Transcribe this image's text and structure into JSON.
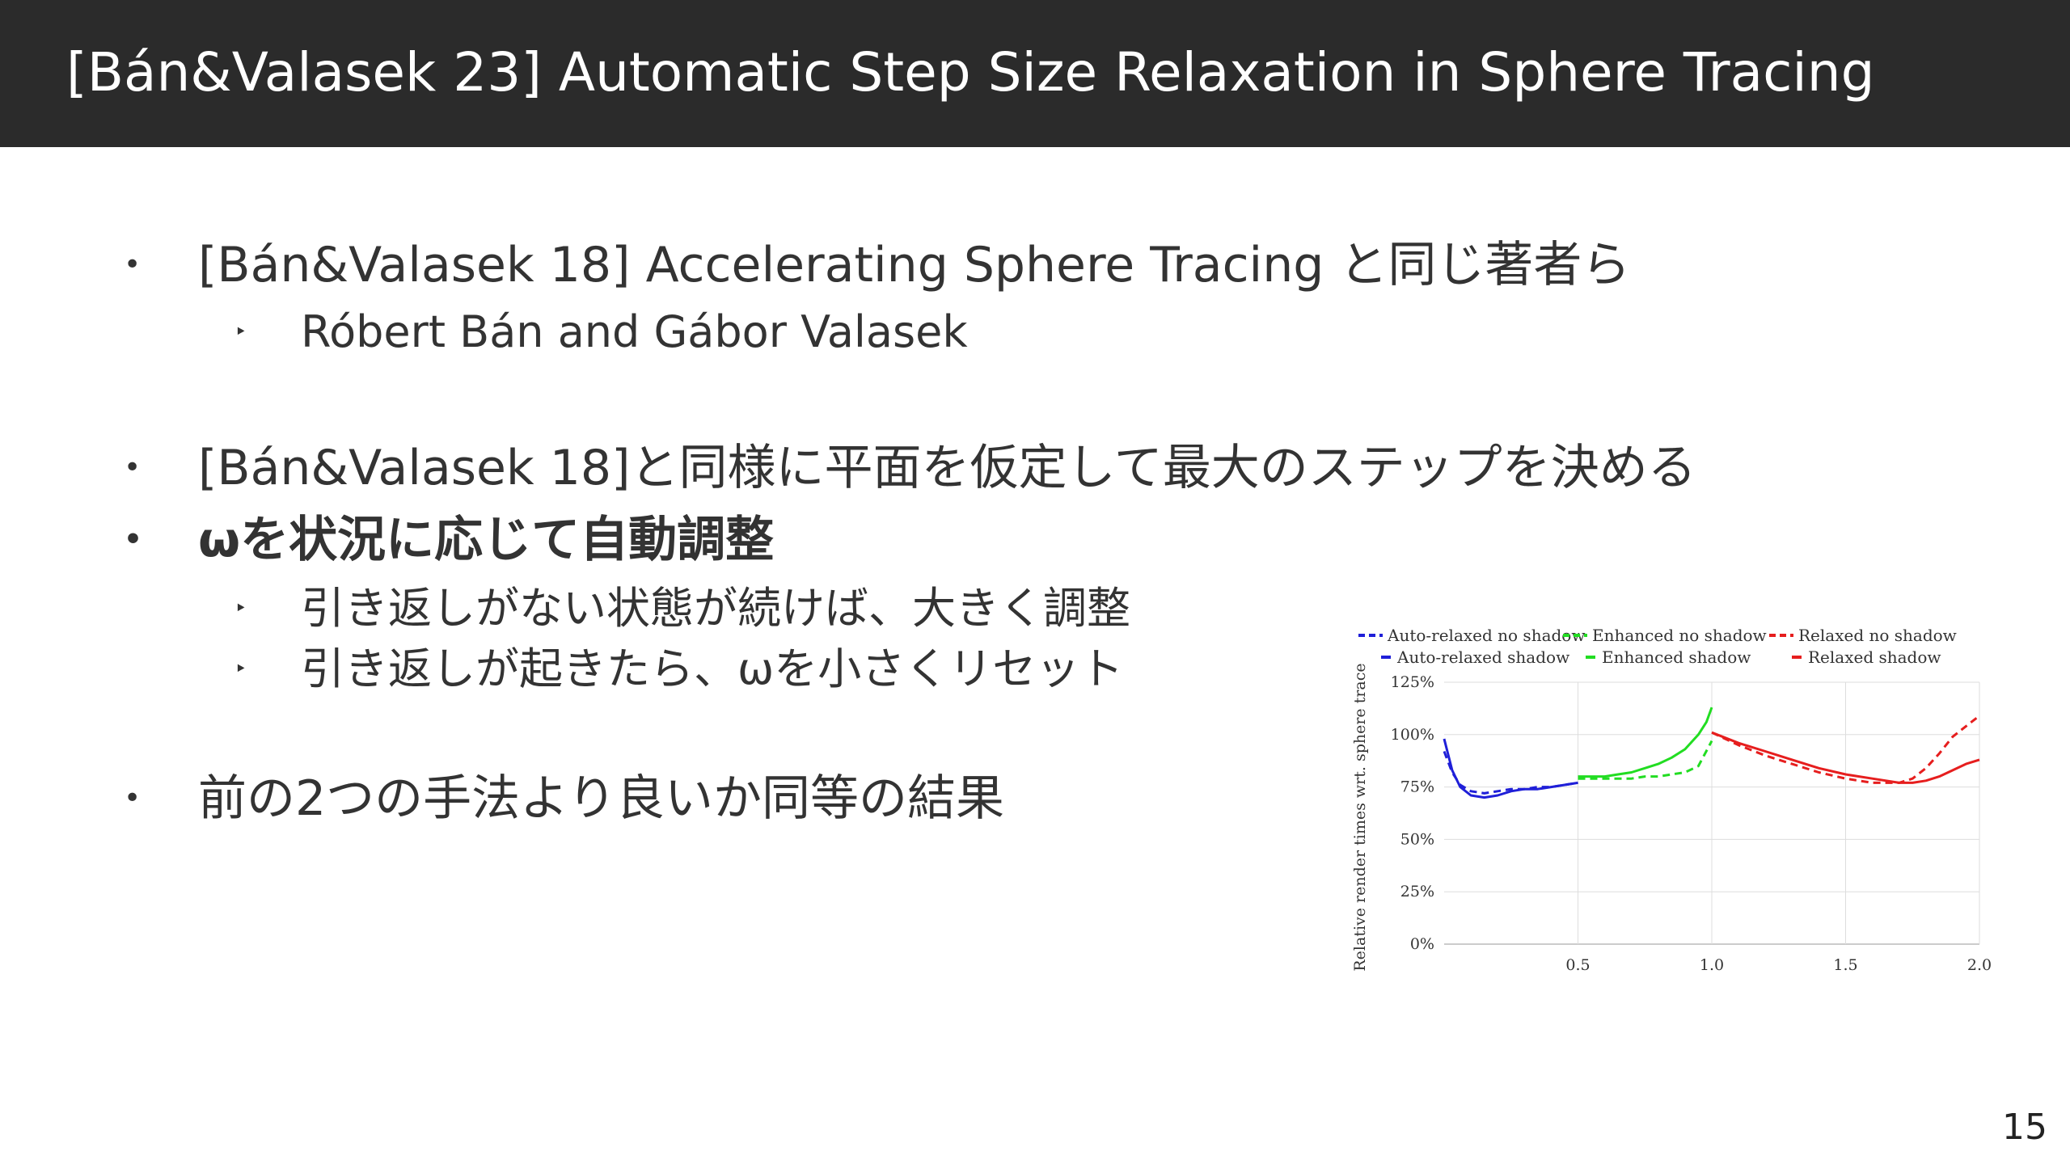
{
  "slide": {
    "title": "[Bán&Valasek 23] Automatic Step Size Relaxation in Sphere Tracing",
    "page_number": "15"
  },
  "bullets": [
    {
      "mark": "•",
      "text": "[Bán&Valasek 18] Accelerating Sphere Tracing と同じ著者ら"
    },
    {
      "mark": "‣",
      "text": "Róbert Bán and Gábor Valasek"
    },
    {
      "mark": "•",
      "text": "[Bán&Valasek 18]と同様に平面を仮定して最大のステップを決める"
    },
    {
      "mark": "•",
      "text": "ωを状況に応じて自動調整"
    },
    {
      "mark": "‣",
      "text": "引き返しがない状態が続けば、大きく調整"
    },
    {
      "mark": "‣",
      "text": "引き返しが起きたら、ωを小さくリセット"
    },
    {
      "mark": "•",
      "text": "前の2つの手法より良いか同等の結果"
    }
  ],
  "chart_data": {
    "type": "line",
    "ylabel": "Relative render times wrt. sphere trace",
    "xlabel": "",
    "xlim": [
      0.0,
      2.0
    ],
    "ylim": [
      0,
      125
    ],
    "x_ticks": [
      "0.5",
      "1.0",
      "1.5",
      "2.0"
    ],
    "y_ticks": [
      "0%",
      "25%",
      "50%",
      "75%",
      "100%",
      "125%"
    ],
    "y_tick_values": [
      0,
      25,
      50,
      75,
      100,
      125
    ],
    "x_tick_values": [
      0.5,
      1.0,
      1.5,
      2.0
    ],
    "grid": true,
    "legend_placement": "top",
    "series": [
      {
        "name": "Auto-relaxed no shadow",
        "color": "#1f1fd8",
        "dash": true,
        "x": [
          0.0,
          0.03,
          0.06,
          0.1,
          0.15,
          0.2,
          0.25,
          0.3,
          0.35,
          0.4,
          0.45,
          0.5
        ],
        "y": [
          92,
          82,
          76,
          73,
          72,
          73,
          74,
          74,
          75,
          75,
          76,
          77
        ]
      },
      {
        "name": "Auto-relaxed shadow",
        "color": "#1f1fd8",
        "dash": false,
        "x": [
          0.0,
          0.03,
          0.06,
          0.1,
          0.15,
          0.2,
          0.25,
          0.3,
          0.35,
          0.4,
          0.45,
          0.5
        ],
        "y": [
          98,
          83,
          75,
          71,
          70,
          71,
          73,
          74,
          74,
          75,
          76,
          77
        ]
      },
      {
        "name": "Enhanced no shadow",
        "color": "#22dd22",
        "dash": true,
        "x": [
          0.5,
          0.55,
          0.6,
          0.65,
          0.7,
          0.75,
          0.8,
          0.85,
          0.9,
          0.95,
          1.0
        ],
        "y": [
          79,
          79,
          79,
          79,
          79,
          80,
          80,
          81,
          82,
          85,
          97
        ]
      },
      {
        "name": "Enhanced shadow",
        "color": "#22dd22",
        "dash": false,
        "x": [
          0.5,
          0.55,
          0.6,
          0.65,
          0.7,
          0.75,
          0.8,
          0.85,
          0.9,
          0.95,
          0.98,
          1.0
        ],
        "y": [
          80,
          80,
          80,
          81,
          82,
          84,
          86,
          89,
          93,
          100,
          106,
          113
        ]
      },
      {
        "name": "Relaxed no shadow",
        "color": "#e61e1e",
        "dash": true,
        "x": [
          1.0,
          1.1,
          1.2,
          1.3,
          1.4,
          1.5,
          1.6,
          1.7,
          1.75,
          1.8,
          1.85,
          1.9,
          1.95,
          2.0
        ],
        "y": [
          101,
          95,
          90,
          86,
          82,
          79,
          77,
          77,
          79,
          84,
          91,
          99,
          104,
          109
        ]
      },
      {
        "name": "Relaxed shadow",
        "color": "#e61e1e",
        "dash": false,
        "x": [
          1.0,
          1.1,
          1.2,
          1.3,
          1.4,
          1.5,
          1.6,
          1.7,
          1.75,
          1.8,
          1.85,
          1.9,
          1.95,
          2.0
        ],
        "y": [
          101,
          96,
          92,
          88,
          84,
          81,
          79,
          77,
          77,
          78,
          80,
          83,
          86,
          88
        ]
      }
    ]
  }
}
